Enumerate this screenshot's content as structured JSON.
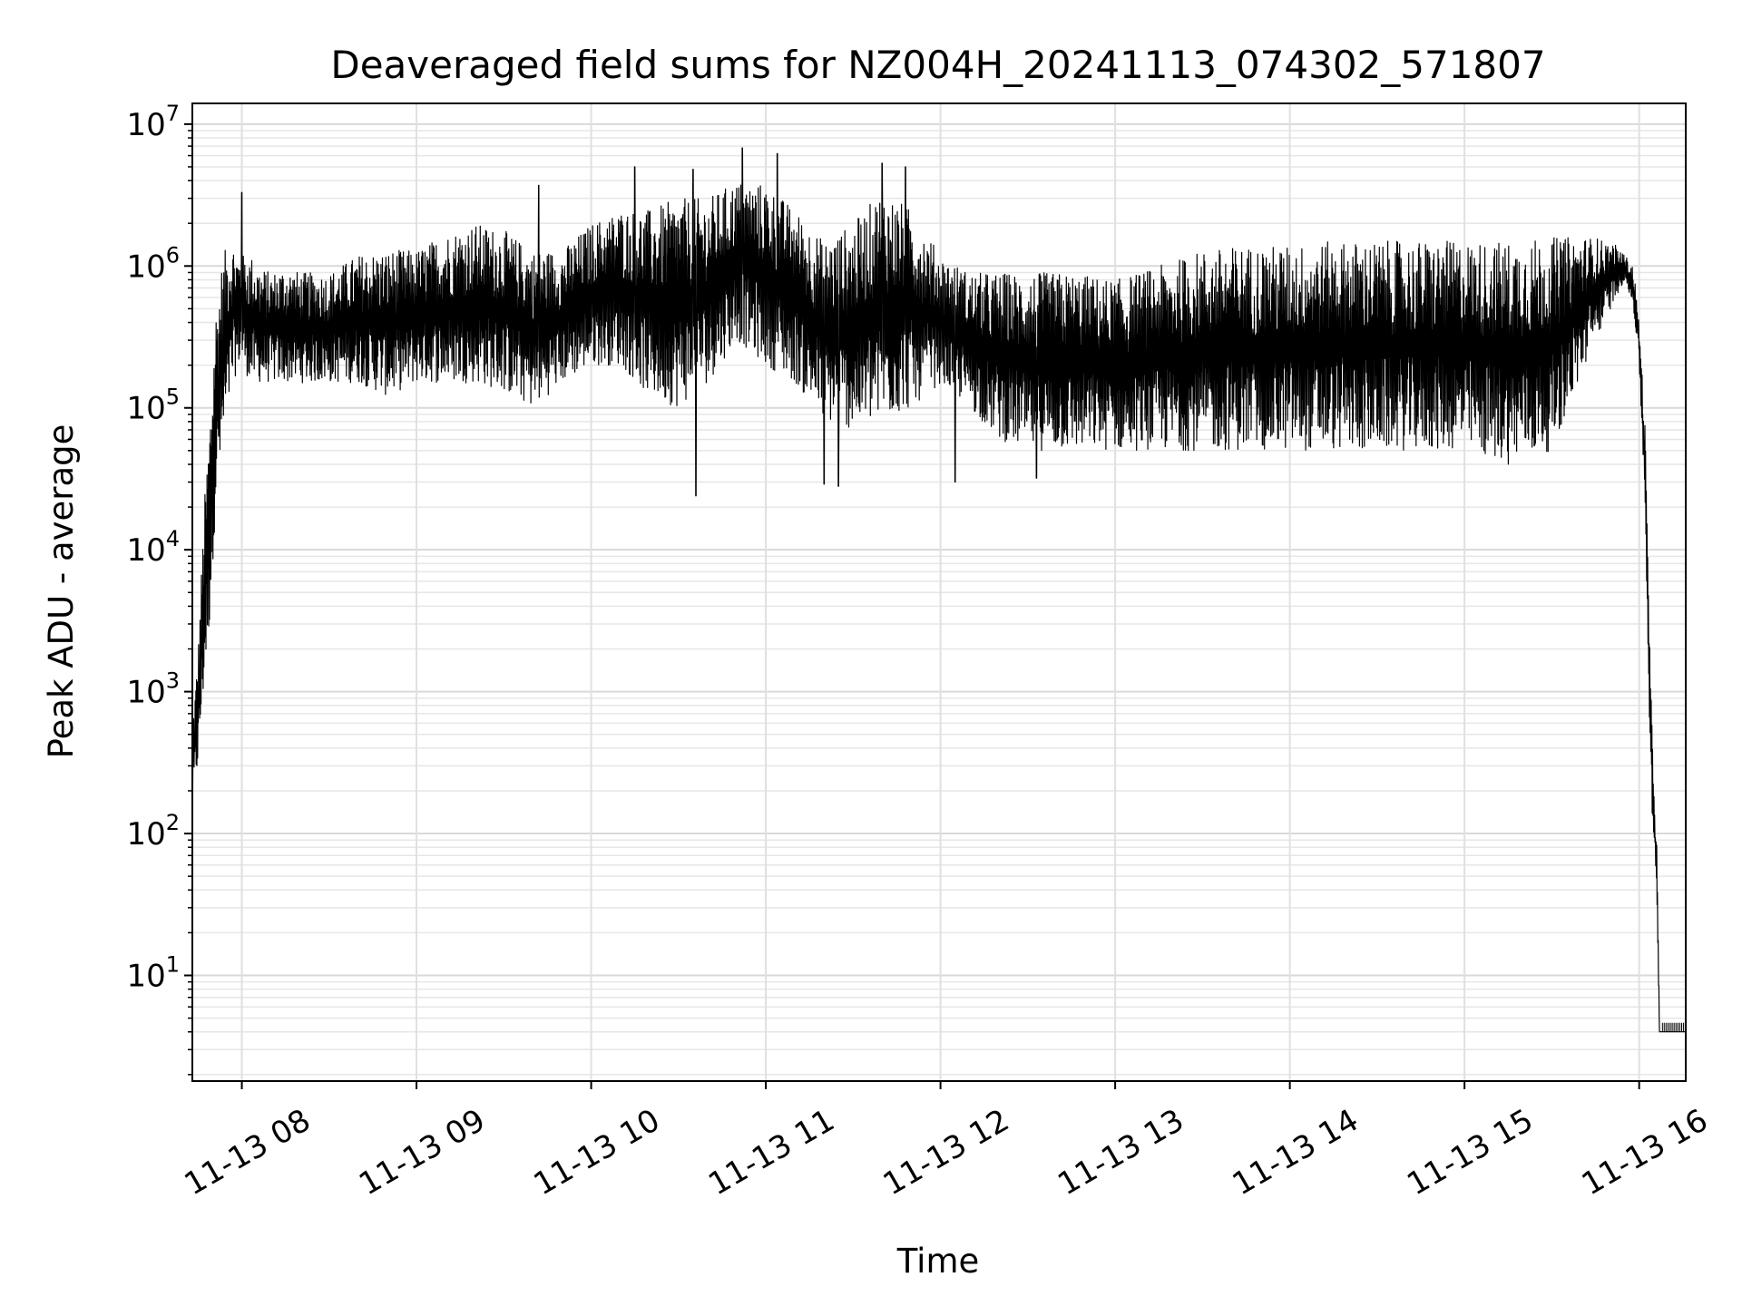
{
  "chart_data": {
    "type": "line",
    "title": "Deaveraged field sums for NZ004H_20241113_074302_571807",
    "xlabel": "Time",
    "ylabel": "Peak ADU - average",
    "x_range": [
      "2024-11-13 07:43",
      "2024-11-13 16:16"
    ],
    "y_scale": "log",
    "ylim": [
      1.8,
      14000000
    ],
    "x_ticks": [
      "11-13 08",
      "11-13 09",
      "11-13 10",
      "11-13 11",
      "11-13 12",
      "11-13 13",
      "11-13 14",
      "11-13 15",
      "11-13 16"
    ],
    "y_ticks": [
      {
        "base": "10",
        "exp": "1",
        "value": 10
      },
      {
        "base": "10",
        "exp": "2",
        "value": 100
      },
      {
        "base": "10",
        "exp": "3",
        "value": 1000
      },
      {
        "base": "10",
        "exp": "4",
        "value": 10000
      },
      {
        "base": "10",
        "exp": "5",
        "value": 100000
      },
      {
        "base": "10",
        "exp": "6",
        "value": 1000000
      },
      {
        "base": "10",
        "exp": "7",
        "value": 10000000
      }
    ],
    "grid": true,
    "line_color": "#000000",
    "series": [
      {
        "x": [
          "07:43",
          "07:45",
          "07:47",
          "07:49",
          "07:51",
          "07:53",
          "07:55",
          "07:57",
          "07:59",
          "08:00",
          "08:03",
          "08:06",
          "08:10",
          "08:15",
          "08:20",
          "08:25",
          "08:30",
          "08:40",
          "08:50",
          "09:00",
          "09:10",
          "09:20",
          "09:30",
          "09:40",
          "09:50",
          "10:00",
          "10:10",
          "10:20",
          "10:30",
          "10:40",
          "10:50",
          "11:00",
          "11:10",
          "11:20",
          "11:30",
          "11:40",
          "11:50",
          "12:00",
          "12:10",
          "12:20",
          "12:30",
          "12:45",
          "13:00",
          "13:15",
          "13:30",
          "13:45",
          "14:00",
          "14:15",
          "14:30",
          "14:45",
          "15:00",
          "15:15",
          "15:30",
          "15:45",
          "15:52",
          "15:55",
          "15:58",
          "16:00",
          "16:02",
          "16:04",
          "16:06",
          "16:07",
          "16:08",
          "16:10",
          "16:12",
          "16:14",
          "16:16"
        ],
        "low": [
          150,
          300,
          1000,
          3000,
          20000,
          40000,
          80000,
          150000,
          200000,
          200000,
          150000,
          150000,
          150000,
          150000,
          150000,
          150000,
          150000,
          150000,
          120000,
          150000,
          150000,
          150000,
          130000,
          100000,
          150000,
          200000,
          200000,
          120000,
          100000,
          150000,
          300000,
          200000,
          150000,
          80000,
          70000,
          80000,
          100000,
          150000,
          100000,
          60000,
          50000,
          50000,
          50000,
          50000,
          50000,
          50000,
          50000,
          50000,
          50000,
          50000,
          50000,
          40000,
          50000,
          300000,
          600000,
          800000,
          500000,
          200000,
          20000,
          200,
          30,
          4,
          4,
          4,
          4,
          4,
          4
        ],
        "high": [
          600,
          2000,
          20000,
          90000,
          500000,
          1000000,
          1500000,
          1500000,
          1200000,
          1200000,
          1200000,
          1000000,
          900000,
          1000000,
          900000,
          900000,
          900000,
          1200000,
          1300000,
          1300000,
          1700000,
          2000000,
          1800000,
          1300000,
          1300000,
          2000000,
          2500000,
          2500000,
          3000000,
          3000000,
          4000000,
          3800000,
          2500000,
          1500000,
          2000000,
          3500000,
          2500000,
          1200000,
          900000,
          900000,
          900000,
          900000,
          800000,
          1000000,
          1300000,
          1400000,
          1400000,
          1500000,
          1500000,
          1500000,
          1500000,
          1500000,
          1600000,
          1600000,
          1400000,
          1200000,
          1000000,
          400000,
          80000,
          1000,
          100,
          4,
          4,
          4,
          4,
          4,
          4
        ],
        "spikes": [
          {
            "x": "08:00",
            "y": 3300000
          },
          {
            "x": "09:42",
            "y": 3700000
          },
          {
            "x": "10:15",
            "y": 5000000
          },
          {
            "x": "10:35",
            "y": 4800000
          },
          {
            "x": "10:52",
            "y": 6800000
          },
          {
            "x": "11:04",
            "y": 6200000
          },
          {
            "x": "11:40",
            "y": 5300000
          },
          {
            "x": "11:48",
            "y": 5000000
          },
          {
            "x": "10:36",
            "y": 24000
          },
          {
            "x": "11:20",
            "y": 29000
          },
          {
            "x": "11:25",
            "y": 28000
          },
          {
            "x": "12:05",
            "y": 30000
          },
          {
            "x": "12:33",
            "y": 32000
          }
        ]
      }
    ]
  }
}
